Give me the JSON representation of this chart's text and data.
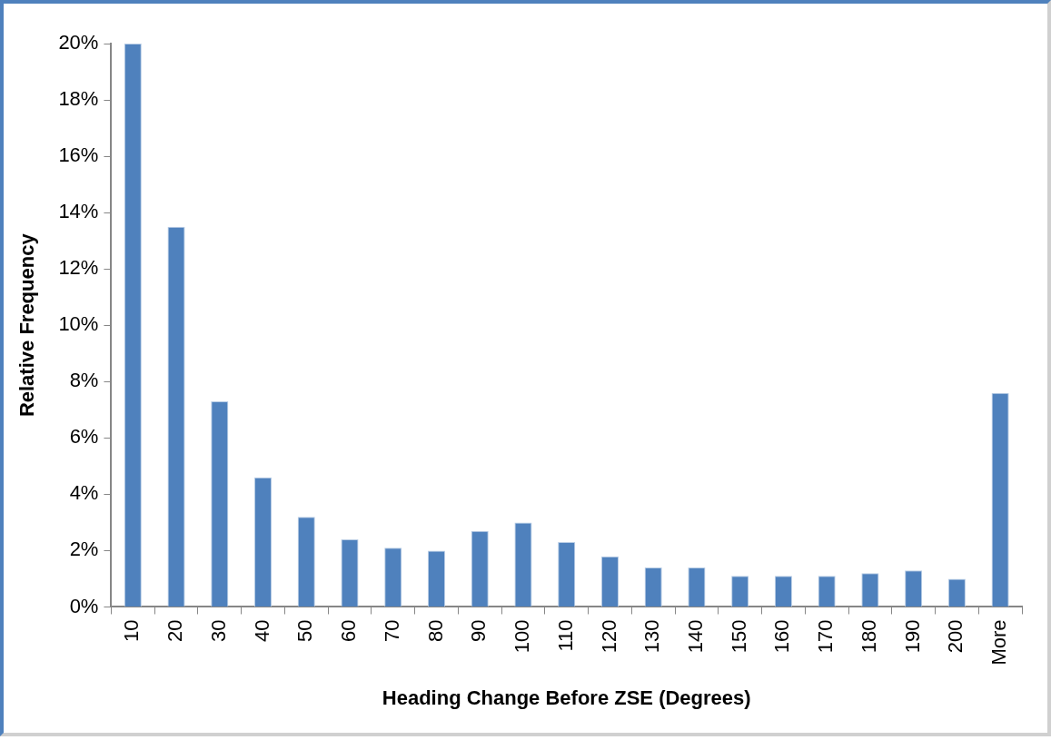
{
  "chart_data": {
    "type": "bar",
    "xlabel": "Heading Change Before ZSE (Degrees)",
    "ylabel": "Relative Frequency",
    "categories": [
      "10",
      "20",
      "30",
      "40",
      "50",
      "60",
      "70",
      "80",
      "90",
      "100",
      "110",
      "120",
      "130",
      "140",
      "150",
      "160",
      "170",
      "180",
      "190",
      "200",
      "More"
    ],
    "values": [
      20.0,
      13.5,
      7.3,
      4.6,
      3.2,
      2.4,
      2.1,
      2.0,
      2.7,
      3.0,
      2.3,
      1.8,
      1.4,
      1.4,
      1.1,
      1.1,
      1.1,
      1.2,
      1.3,
      1.0,
      7.6
    ],
    "color": "#4f81bd",
    "ylim": [
      0,
      20
    ],
    "yticks": [
      {
        "value": 0,
        "label": "0%"
      },
      {
        "value": 2,
        "label": "2%"
      },
      {
        "value": 4,
        "label": "4%"
      },
      {
        "value": 6,
        "label": "6%"
      },
      {
        "value": 8,
        "label": "8%"
      },
      {
        "value": 10,
        "label": "10%"
      },
      {
        "value": 12,
        "label": "12%"
      },
      {
        "value": 14,
        "label": "14%"
      },
      {
        "value": 16,
        "label": "16%"
      },
      {
        "value": 18,
        "label": "18%"
      },
      {
        "value": 20,
        "label": "20%"
      }
    ],
    "grid": false,
    "legend": false
  }
}
